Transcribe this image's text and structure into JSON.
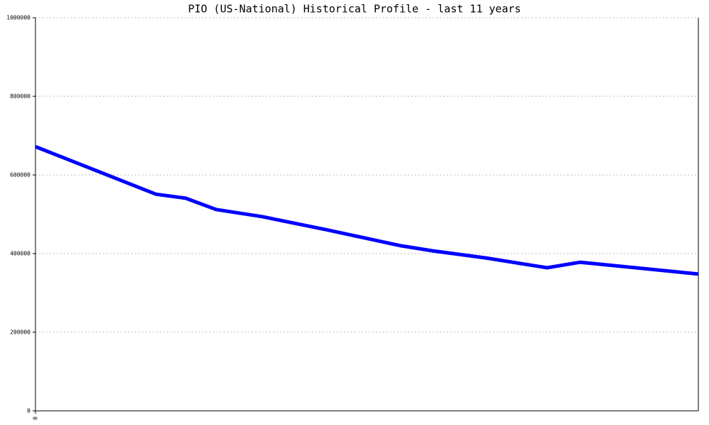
{
  "chart_data": {
    "type": "line",
    "title": "PIO (US-National) Historical Profile - last 11 years",
    "x": [
      0,
      2.0,
      2.49,
      3.0,
      3.76,
      4.82,
      6.06,
      6.59,
      7.47,
      8.49,
      9.04,
      11
    ],
    "series": [
      {
        "color": "#0000ff",
        "values": [
          672000,
          551000,
          541000,
          512000,
          494000,
          461000,
          420000,
          407000,
          389000,
          364000,
          378000,
          348000
        ]
      }
    ],
    "xlim": [
      0,
      11
    ],
    "xticks": [
      0
    ],
    "ylim": [
      0,
      1000000
    ],
    "yticks": [
      0,
      200000,
      400000,
      600000,
      800000,
      1000000
    ],
    "grid": true
  }
}
